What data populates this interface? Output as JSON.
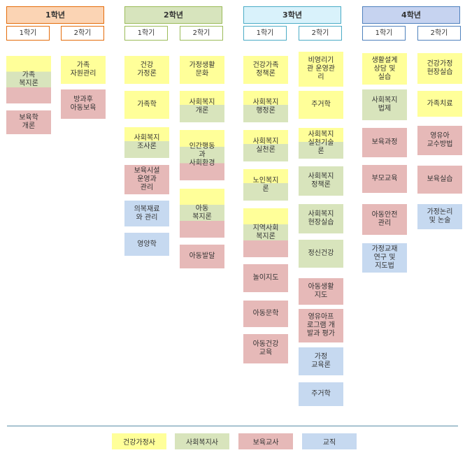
{
  "colors": {
    "family": "#ffff99",
    "social": "#d8e4bc",
    "childcare": "#e6b9b8",
    "teaching": "#c6d9f0"
  },
  "years": [
    {
      "label": "1학년",
      "sem1": "1학기",
      "sem2": "2학기"
    },
    {
      "label": "2학년",
      "sem1": "1학기",
      "sem2": "2학기"
    },
    {
      "label": "3학년",
      "sem1": "1학기",
      "sem2": "2학기"
    },
    {
      "label": "4학년",
      "sem1": "1학기",
      "sem2": "2학기"
    }
  ],
  "courses": {
    "y1s1": [
      "가족\n복지론",
      "보육학\n개론"
    ],
    "y1s2": [
      "가족\n자원관리",
      "방과후\n아동보육"
    ],
    "y2s1": [
      "건강\n가정론",
      "가족학",
      "사회복지\n조사론",
      "보육시설\n운영과\n관리",
      "의복재료\n와 관리",
      "영양학"
    ],
    "y2s2": [
      "가정생활\n문화",
      "사회복지\n개론",
      "인간행동\n과\n사회환경",
      "아동\n복지론",
      "아동발달"
    ],
    "y3s1": [
      "건강가족\n정책론",
      "사회복지\n행정론",
      "사회복지\n실천론",
      "노인복지\n론",
      "지역사회\n복지론",
      "놀이지도",
      "아동문학",
      "아동건강\n교육"
    ],
    "y3s2": [
      "비영리기\n관 운영관\n리",
      "주거학",
      "사회복지\n실천기술\n론",
      "사회복지\n정책론",
      "사회복지\n현장실습",
      "정신건강",
      "아동생활\n지도",
      "영유아프\n로그램 개\n발과 평가",
      "가정\n교육론",
      "주거학"
    ],
    "y4s1": [
      "생활설계\n상담 및\n실습",
      "사회복지\n법제",
      "보육과정",
      "부모교육",
      "아동안전\n관리",
      "가정교재\n연구 및\n지도법"
    ],
    "y4s2": [
      "건강가정\n현장실습",
      "가족치료",
      "영유아\n교수방법",
      "보육실습",
      "가정논리\n및 논술"
    ]
  },
  "legend": [
    {
      "label": "건강가정사",
      "color": "#ffff99"
    },
    {
      "label": "사회복지사",
      "color": "#d8e4bc"
    },
    {
      "label": "보육교사",
      "color": "#e6b9b8"
    },
    {
      "label": "교직",
      "color": "#c6d9f0"
    }
  ]
}
